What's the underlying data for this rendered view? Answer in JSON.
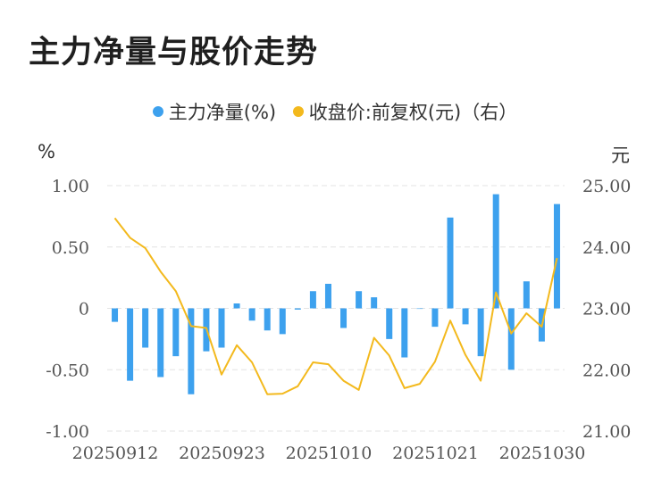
{
  "title": "主力净量与股价走势",
  "legend": [
    {
      "label": "主力净量(%)",
      "color": "#3da1ee"
    },
    {
      "label": "收盘价:前复权(元)（右）",
      "color": "#f3b91d"
    }
  ],
  "units": {
    "left": "%",
    "right": "元"
  },
  "chart_data": {
    "type": "bar+line",
    "x_ticks": [
      "20250912",
      "20250923",
      "20251010",
      "20251021",
      "20251030"
    ],
    "y_left": {
      "min": -1.0,
      "max": 1.0,
      "ticks": [
        1.0,
        0.5,
        0,
        -0.5,
        -1.0
      ],
      "tick_labels": [
        "1.00",
        "0.50",
        "0",
        "-0.50",
        "-1.00"
      ]
    },
    "y_right": {
      "min": 21.0,
      "max": 25.0,
      "ticks": [
        25,
        24,
        23,
        22,
        21
      ],
      "tick_labels": [
        "25.00",
        "24.00",
        "23.00",
        "22.00",
        "21.00"
      ]
    },
    "grid": "horizontal dashed",
    "legend_position": "top-center",
    "series": [
      {
        "name": "主力净量(%)",
        "type": "bar",
        "axis": "left",
        "color": "#3da1ee",
        "values": [
          -0.11,
          -0.59,
          -0.32,
          -0.56,
          -0.39,
          -0.7,
          -0.35,
          -0.32,
          0.04,
          -0.1,
          -0.18,
          -0.21,
          -0.01,
          0.14,
          0.2,
          -0.16,
          0.14,
          0.09,
          -0.25,
          -0.4,
          0.0,
          -0.15,
          0.74,
          -0.13,
          -0.39,
          0.93,
          -0.5,
          0.22,
          -0.27,
          0.85
        ]
      },
      {
        "name": "收盘价:前复权(元)（右）",
        "type": "line",
        "axis": "right",
        "color": "#f3b91d",
        "values": [
          24.47,
          24.15,
          23.98,
          23.6,
          23.28,
          22.71,
          22.68,
          21.92,
          22.4,
          22.12,
          21.6,
          21.61,
          21.73,
          22.12,
          22.09,
          21.82,
          21.67,
          22.52,
          22.23,
          21.7,
          21.77,
          22.13,
          22.8,
          22.24,
          21.82,
          23.26,
          22.59,
          22.92,
          22.7,
          23.82
        ]
      }
    ]
  }
}
